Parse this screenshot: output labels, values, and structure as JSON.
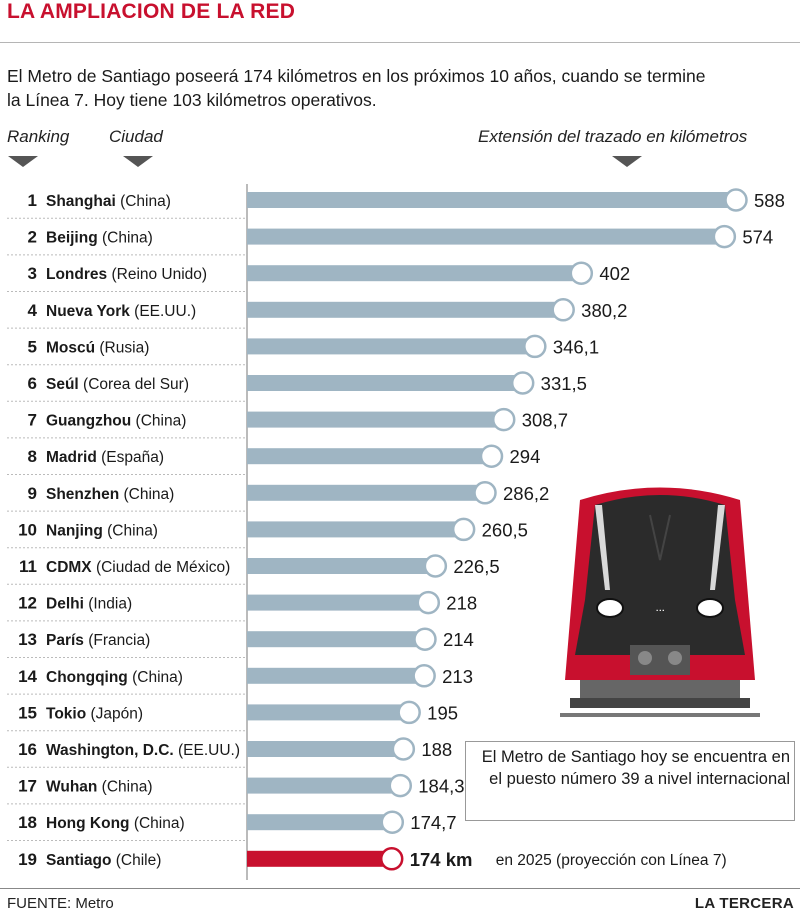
{
  "title": "LA AMPLIACION DE LA RED",
  "intro": "El Metro de Santiago poseerá 174 kilómetros en los próximos 10 años, cuando se termine la Línea 7. Hoy tiene 103 kilómetros operativos.",
  "headers": {
    "ranking": "Ranking",
    "ciudad": "Ciudad",
    "extension": "Extensión del trazado en kilómetros"
  },
  "chart_data": {
    "type": "bar",
    "orientation": "horizontal",
    "xlim": [
      0,
      600
    ],
    "rows": [
      {
        "rank": "1",
        "city": "Shanghai",
        "country": "(China)",
        "value": 588,
        "label": "588"
      },
      {
        "rank": "2",
        "city": "Beijing",
        "country": "(China)",
        "value": 574,
        "label": "574"
      },
      {
        "rank": "3",
        "city": "Londres",
        "country": "(Reino Unido)",
        "value": 402,
        "label": "402"
      },
      {
        "rank": "4",
        "city": "Nueva York",
        "country": "(EE.UU.)",
        "value": 380.2,
        "label": "380,2"
      },
      {
        "rank": "5",
        "city": "Moscú",
        "country": "(Rusia)",
        "value": 346.1,
        "label": "346,1"
      },
      {
        "rank": "6",
        "city": "Seúl",
        "country": "(Corea del Sur)",
        "value": 331.5,
        "label": "331,5"
      },
      {
        "rank": "7",
        "city": "Guangzhou",
        "country": "(China)",
        "value": 308.7,
        "label": "308,7"
      },
      {
        "rank": "8",
        "city": "Madrid",
        "country": "(España)",
        "value": 294,
        "label": "294"
      },
      {
        "rank": "9",
        "city": "Shenzhen",
        "country": "(China)",
        "value": 286.2,
        "label": "286,2"
      },
      {
        "rank": "10",
        "city": "Nanjing",
        "country": "(China)",
        "value": 260.5,
        "label": "260,5"
      },
      {
        "rank": "11",
        "city": "CDMX",
        "country": "(Ciudad de México)",
        "value": 226.5,
        "label": "226,5"
      },
      {
        "rank": "12",
        "city": "Delhi",
        "country": "(India)",
        "value": 218,
        "label": "218"
      },
      {
        "rank": "13",
        "city": "París",
        "country": "(Francia)",
        "value": 214,
        "label": "214"
      },
      {
        "rank": "14",
        "city": "Chongqing",
        "country": "(China)",
        "value": 213,
        "label": "213"
      },
      {
        "rank": "15",
        "city": "Tokio",
        "country": "(Japón)",
        "value": 195,
        "label": "195"
      },
      {
        "rank": "16",
        "city": "Washington, D.C.",
        "country": "(EE.UU.)",
        "value": 188,
        "label": "188"
      },
      {
        "rank": "17",
        "city": "Wuhan",
        "country": "(China)",
        "value": 184.3,
        "label": "184,3"
      },
      {
        "rank": "18",
        "city": "Hong Kong",
        "country": "(China)",
        "value": 174.7,
        "label": "174,7"
      },
      {
        "rank": "19",
        "city": "Santiago",
        "country": "(Chile)",
        "value": 174,
        "label": "174 km",
        "note": "en 2025 (proyección con Línea 7)",
        "highlight": true
      }
    ],
    "colors": {
      "bar": "#9fb5c3",
      "highlight": "#c8102e",
      "marker_stroke": "#9fb5c3"
    }
  },
  "infobox": "El Metro de Santiago hoy se encuentra en el puesto número 39 a nivel internacional",
  "source": "FUENTE: Metro",
  "brand": "LA TERCERA"
}
